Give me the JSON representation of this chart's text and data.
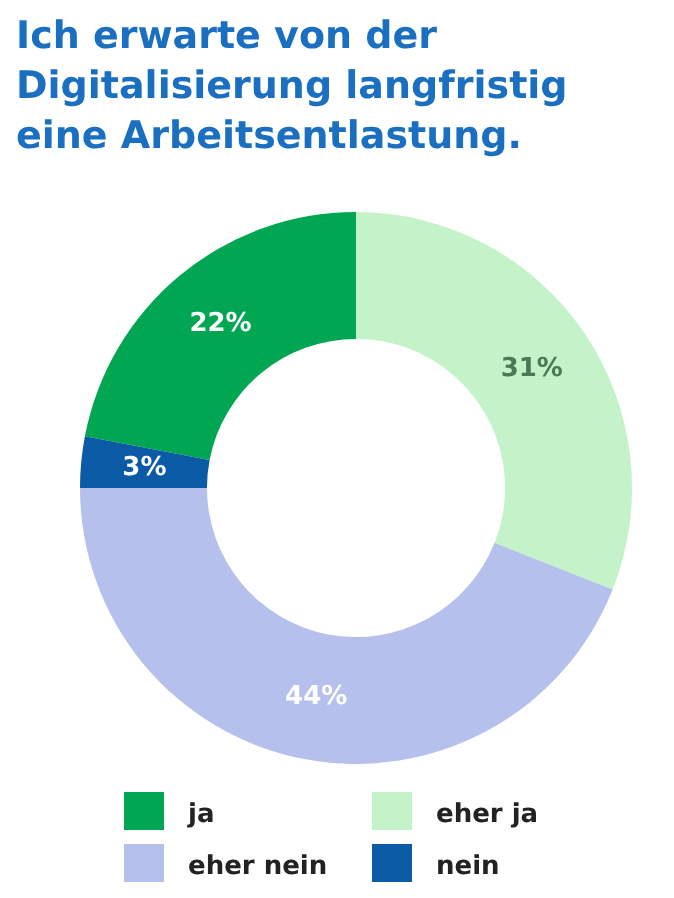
{
  "chart_data": {
    "type": "donut",
    "title": "Ich erwarte von der Digitalisierung langfristig eine Arbeitsentlastung.",
    "categories": [
      "ja",
      "eher ja",
      "eher nein",
      "nein"
    ],
    "values": [
      22,
      31,
      44,
      3
    ],
    "value_labels": [
      "22%",
      "31%",
      "44%",
      "3%"
    ],
    "colors": [
      "#00a651",
      "#c4f2c9",
      "#b5c1ec",
      "#0b5aa6"
    ],
    "legend": "bottom"
  }
}
